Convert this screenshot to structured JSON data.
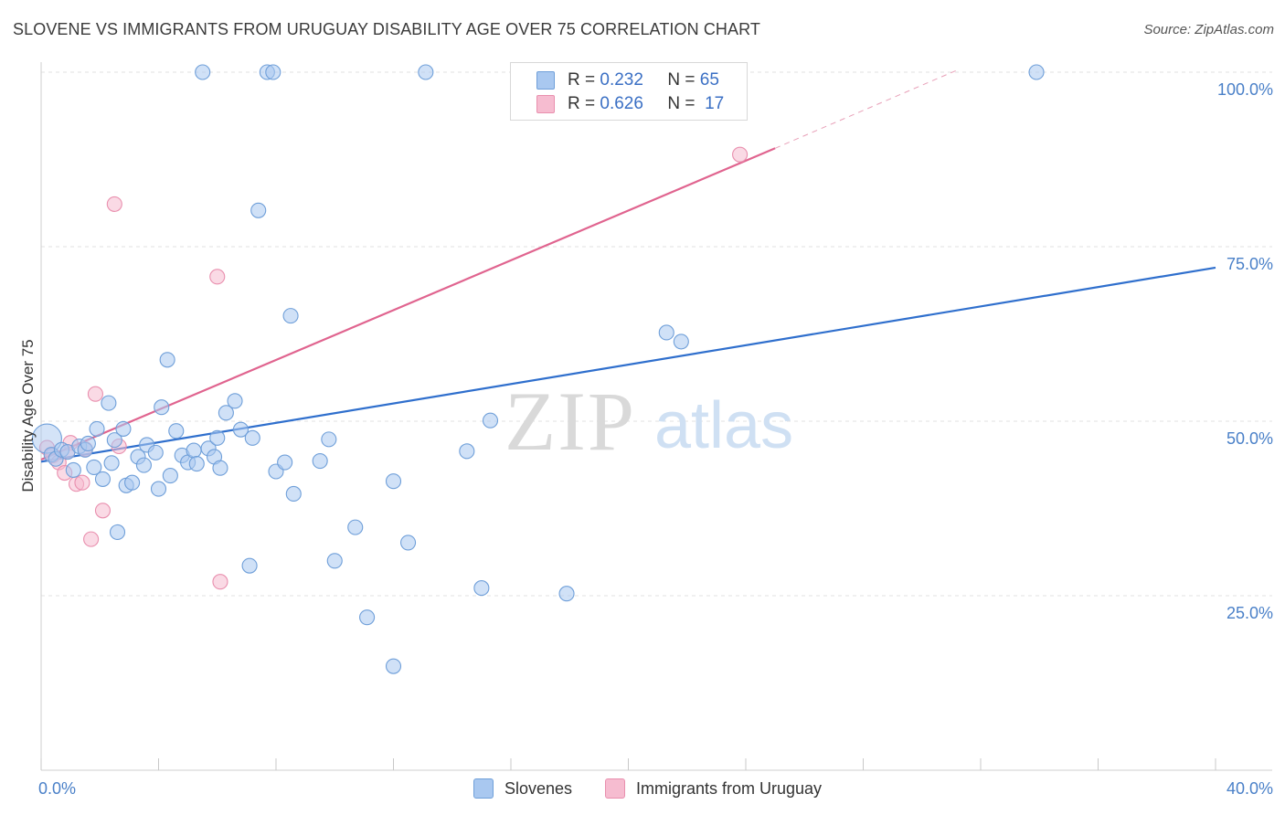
{
  "title": "SLOVENE VS IMMIGRANTS FROM URUGUAY DISABILITY AGE OVER 75 CORRELATION CHART",
  "source": "Source: ZipAtlas.com",
  "watermark": {
    "zip": "ZIP",
    "atlas": "atlas"
  },
  "legend": {
    "r_label": "R =",
    "n_label": "N =",
    "series1": {
      "r": "0.232",
      "n": "65"
    },
    "series2": {
      "r": "0.626",
      "n": "17"
    }
  },
  "bottom_legend": {
    "series1": "Slovenes",
    "series2": "Immigrants from Uruguay"
  },
  "colors": {
    "blue_fill": "#a9c8f0",
    "blue_stroke": "#6f9fd9",
    "blue_line": "#2f6fcd",
    "pink_fill": "#f6bcd0",
    "pink_stroke": "#e98fae",
    "pink_line": "#e0648f",
    "grid": "#e2e2e2",
    "tick_text": "#4a80c8"
  },
  "chart_data": {
    "type": "scatter",
    "title": "SLOVENE VS IMMIGRANTS FROM URUGUAY DISABILITY AGE OVER 75 CORRELATION CHART",
    "xlabel": "",
    "ylabel": "Disability Age Over 75",
    "xlim": [
      0,
      40
    ],
    "ylim": [
      0,
      105
    ],
    "x_tick_labels": [
      "0.0%",
      "40.0%"
    ],
    "y_ticks": [
      25,
      50,
      75,
      100
    ],
    "y_tick_labels": [
      "25.0%",
      "50.0%",
      "75.0%",
      "100.0%"
    ],
    "grid": true,
    "series": [
      {
        "name": "Slovenes",
        "R": 0.232,
        "N": 65,
        "trend": {
          "x": [
            0,
            40
          ],
          "y": [
            44.2,
            72.0
          ]
        },
        "points": [
          [
            0.2,
            47.5
          ],
          [
            0.35,
            45.2
          ],
          [
            0.5,
            44.6
          ],
          [
            0.7,
            45.9
          ],
          [
            0.9,
            45.6
          ],
          [
            1.1,
            43.0
          ],
          [
            1.3,
            46.4
          ],
          [
            1.5,
            45.9
          ],
          [
            1.6,
            46.8
          ],
          [
            1.8,
            43.4
          ],
          [
            1.9,
            48.9
          ],
          [
            2.1,
            41.7
          ],
          [
            2.3,
            52.6
          ],
          [
            2.5,
            47.3
          ],
          [
            2.6,
            34.1
          ],
          [
            2.8,
            48.9
          ],
          [
            2.9,
            40.8
          ],
          [
            3.1,
            41.2
          ],
          [
            3.3,
            44.9
          ],
          [
            3.5,
            43.7
          ],
          [
            3.6,
            46.6
          ],
          [
            3.9,
            45.5
          ],
          [
            4.0,
            40.3
          ],
          [
            4.1,
            52.0
          ],
          [
            4.3,
            58.8
          ],
          [
            4.4,
            42.2
          ],
          [
            4.6,
            48.6
          ],
          [
            4.8,
            45.1
          ],
          [
            5.0,
            44.1
          ],
          [
            5.2,
            45.8
          ],
          [
            5.3,
            43.9
          ],
          [
            5.5,
            100.0
          ],
          [
            5.7,
            46.1
          ],
          [
            5.9,
            44.9
          ],
          [
            6.0,
            47.6
          ],
          [
            6.1,
            43.3
          ],
          [
            6.3,
            51.2
          ],
          [
            6.6,
            52.9
          ],
          [
            6.8,
            48.8
          ],
          [
            7.1,
            29.3
          ],
          [
            7.2,
            47.6
          ],
          [
            7.4,
            80.2
          ],
          [
            7.7,
            100.0
          ],
          [
            7.9,
            100.0
          ],
          [
            8.0,
            42.8
          ],
          [
            8.3,
            44.1
          ],
          [
            8.5,
            65.1
          ],
          [
            8.6,
            39.6
          ],
          [
            9.5,
            44.3
          ],
          [
            9.8,
            47.4
          ],
          [
            10.0,
            30.0
          ],
          [
            10.7,
            34.8
          ],
          [
            11.1,
            21.9
          ],
          [
            12.0,
            41.4
          ],
          [
            12.5,
            32.6
          ],
          [
            13.1,
            100.0
          ],
          [
            14.5,
            45.7
          ],
          [
            15.0,
            26.1
          ],
          [
            15.3,
            50.1
          ],
          [
            17.9,
            25.3
          ],
          [
            21.3,
            62.7
          ],
          [
            21.8,
            61.4
          ],
          [
            33.9,
            100.0
          ],
          [
            12.0,
            14.9
          ],
          [
            2.4,
            44.0
          ]
        ]
      },
      {
        "name": "Immigrants from Uruguay",
        "R": 0.626,
        "N": 17,
        "trend": {
          "x": [
            0,
            25.0
          ],
          "y": [
            44.5,
            89.1
          ]
        },
        "trend_dashed": {
          "x": [
            25.0,
            31.2
          ],
          "y": [
            89.1,
            100.3
          ]
        },
        "points": [
          [
            0.2,
            46.2
          ],
          [
            0.4,
            45.1
          ],
          [
            0.6,
            44.1
          ],
          [
            0.8,
            42.6
          ],
          [
            1.0,
            46.9
          ],
          [
            1.2,
            41.0
          ],
          [
            1.4,
            41.2
          ],
          [
            1.7,
            33.1
          ],
          [
            1.85,
            53.9
          ],
          [
            2.1,
            37.2
          ],
          [
            2.5,
            81.1
          ],
          [
            2.65,
            46.4
          ],
          [
            6.0,
            70.7
          ],
          [
            6.1,
            27.0
          ],
          [
            23.8,
            88.2
          ],
          [
            1.5,
            46.0
          ],
          [
            0.9,
            45.6
          ]
        ]
      }
    ]
  }
}
